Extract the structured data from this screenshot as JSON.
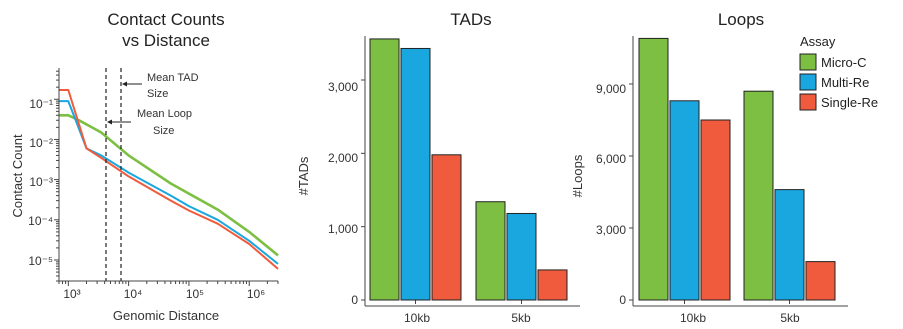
{
  "colors": {
    "micro_c": "#7cbf43",
    "multi_re": "#1aa7e0",
    "single_re": "#ef5b3c",
    "axis": "#444444"
  },
  "legend": {
    "title": "Assay",
    "entries": [
      {
        "label": "Micro-C",
        "color": "#7cbf43"
      },
      {
        "label": "Multi-Re",
        "color": "#1aa7e0"
      },
      {
        "label": "Single-Re",
        "color": "#ef5b3c"
      }
    ]
  },
  "chart_data": [
    {
      "type": "line",
      "title": "Contact Counts vs Distance",
      "title_lines": [
        "Contact Counts",
        "vs Distance"
      ],
      "xlabel": "Genomic Distance",
      "ylabel": "Contact Count",
      "x_scale": "log",
      "y_scale": "log",
      "xlim": [
        700,
        3000000
      ],
      "ylim": [
        3e-06,
        0.6
      ],
      "x_ticks": [
        1000,
        10000,
        100000,
        1000000
      ],
      "x_tick_labels": [
        "10³",
        "10⁴",
        "10⁵",
        "10⁶"
      ],
      "y_ticks": [
        1e-05,
        0.0001,
        0.001,
        0.01,
        0.1
      ],
      "y_tick_labels": [
        "10⁻⁵",
        "10⁻⁴",
        "10⁻³",
        "10⁻²",
        "10⁻¹"
      ],
      "grid": false,
      "annotations": [
        {
          "label_lines": [
            "Mean TAD",
            "Size"
          ],
          "x": 6500
        },
        {
          "label_lines": [
            "Mean Loop",
            "Size"
          ],
          "x": 3500
        }
      ],
      "series": [
        {
          "name": "Micro-C",
          "x": [
            700,
            1000,
            1500,
            3500,
            10000,
            50000,
            100000,
            300000,
            1000000,
            3000000
          ],
          "y": [
            0.04,
            0.04,
            0.03,
            0.015,
            0.004,
            0.0008,
            0.00045,
            0.00018,
            5e-05,
            1.3e-05
          ]
        },
        {
          "name": "Multi-Re",
          "x": [
            700,
            1000,
            2000,
            3500,
            10000,
            50000,
            100000,
            300000,
            1000000,
            3000000
          ],
          "y": [
            0.09,
            0.09,
            0.006,
            0.004,
            0.0015,
            0.0004,
            0.00022,
            0.0001,
            3e-05,
            8e-06
          ]
        },
        {
          "name": "Single-Re",
          "x": [
            700,
            1000,
            2000,
            3500,
            10000,
            50000,
            100000,
            300000,
            1000000,
            3000000
          ],
          "y": [
            0.17,
            0.17,
            0.006,
            0.0035,
            0.0012,
            0.0003,
            0.00017,
            8e-05,
            2.5e-05,
            6e-06
          ]
        }
      ]
    },
    {
      "type": "bar",
      "title": "TADs",
      "xlabel": "",
      "ylabel": "#TADs",
      "categories": [
        "10kb",
        "5kb"
      ],
      "ylim": [
        0,
        3600
      ],
      "y_ticks": [
        0,
        1000,
        2000,
        3000
      ],
      "y_tick_labels": [
        "0",
        "1,000",
        "2,000",
        "3,000"
      ],
      "series": [
        {
          "name": "Micro-C",
          "values": [
            3560,
            1340
          ]
        },
        {
          "name": "Multi-Re",
          "values": [
            3430,
            1180
          ]
        },
        {
          "name": "Single-Re",
          "values": [
            1980,
            410
          ]
        }
      ]
    },
    {
      "type": "bar",
      "title": "Loops",
      "xlabel": "",
      "ylabel": "#Loops",
      "categories": [
        "10kb",
        "5kb"
      ],
      "ylim": [
        0,
        11000
      ],
      "y_ticks": [
        0,
        3000,
        6000,
        9000
      ],
      "y_tick_labels": [
        "0",
        "3,000",
        "6,000",
        "9,000"
      ],
      "series": [
        {
          "name": "Micro-C",
          "values": [
            10900,
            8700
          ]
        },
        {
          "name": "Multi-Re",
          "values": [
            8300,
            4600
          ]
        },
        {
          "name": "Single-Re",
          "values": [
            7500,
            1600
          ]
        }
      ]
    }
  ]
}
